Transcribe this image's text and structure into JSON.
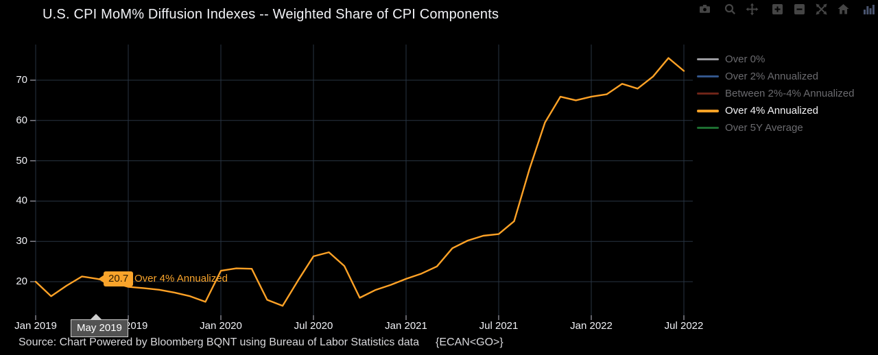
{
  "title": "U.S. CPI MoM% Diffusion Indexes -- Weighted Share of CPI Components",
  "toolbar": {
    "icons": [
      "camera",
      "zoom",
      "pan",
      "zoom-in",
      "zoom-out",
      "autoscale",
      "reset-axes",
      "plotly-logo"
    ]
  },
  "legend": {
    "items": [
      {
        "label": "Over 0%",
        "color": "#9c9ca0",
        "active": false
      },
      {
        "label": "Over 2% Annualized",
        "color": "#33568c",
        "active": false
      },
      {
        "label": "Between 2%-4% Annualized",
        "color": "#6e2418",
        "active": false
      },
      {
        "label": "Over 4% Annualized",
        "color": "#ffa226",
        "active": true
      },
      {
        "label": "Over 5Y Average",
        "color": "#1d6f31",
        "active": false
      }
    ]
  },
  "hover": {
    "value": "20.7",
    "series": "Over 4% Annualized",
    "axis": "May 2019"
  },
  "source": {
    "text": "Source: Chart Powered by Bloomberg BQNT using Bureau of Labor Statistics data",
    "code": "{ECAN<GO>}"
  },
  "colors": {
    "background": "#000000",
    "grid": "#283442",
    "tick": "#8b8b95",
    "accent_orange": "#ffa226"
  },
  "chart_data": {
    "type": "line",
    "title": "U.S. CPI MoM% Diffusion Indexes -- Weighted Share of CPI Components",
    "x": [
      "Jan 2019",
      "Feb 2019",
      "Mar 2019",
      "Apr 2019",
      "May 2019",
      "Jun 2019",
      "Jul 2019",
      "Aug 2019",
      "Sep 2019",
      "Oct 2019",
      "Nov 2019",
      "Dec 2019",
      "Jan 2020",
      "Feb 2020",
      "Mar 2020",
      "Apr 2020",
      "May 2020",
      "Jun 2020",
      "Jul 2020",
      "Aug 2020",
      "Sep 2020",
      "Oct 2020",
      "Nov 2020",
      "Dec 2020",
      "Jan 2021",
      "Feb 2021",
      "Mar 2021",
      "Apr 2021",
      "May 2021",
      "Jun 2021",
      "Jul 2021",
      "Aug 2021",
      "Sep 2021",
      "Oct 2021",
      "Nov 2021",
      "Dec 2021",
      "Jan 2022",
      "Feb 2022",
      "Mar 2022",
      "Apr 2022",
      "May 2022",
      "Jun 2022",
      "Jul 2022"
    ],
    "series": [
      {
        "name": "Over 4% Annualized",
        "color": "#ffa226",
        "visible": true,
        "values": [
          20.0,
          16.4,
          19.0,
          21.3,
          20.7,
          19.8,
          18.7,
          18.4,
          18.0,
          17.3,
          16.4,
          15.0,
          22.7,
          23.3,
          23.2,
          15.5,
          14.0,
          20.3,
          26.3,
          27.3,
          23.9,
          16.0,
          17.9,
          19.2,
          20.7,
          22.0,
          23.8,
          28.3,
          30.2,
          31.4,
          31.8,
          35.0,
          48.0,
          59.5,
          65.9,
          65.0,
          65.9,
          66.5,
          69.1,
          67.9,
          70.9,
          75.5,
          72.3
        ]
      },
      {
        "name": "Over 0%",
        "color": "#9c9ca0",
        "visible": false,
        "values": []
      },
      {
        "name": "Over 2% Annualized",
        "color": "#33568c",
        "visible": false,
        "values": []
      },
      {
        "name": "Between 2%-4% Annualized",
        "color": "#6e2418",
        "visible": false,
        "values": []
      },
      {
        "name": "Over 5Y Average",
        "color": "#1d6f31",
        "visible": false,
        "values": []
      }
    ],
    "xlabel": "",
    "ylabel": "",
    "ylim": [
      11.5,
      79
    ],
    "y_ticks": [
      20,
      30,
      40,
      50,
      60,
      70
    ],
    "x_tick_labels": [
      "Jan 2019",
      "Jul 2019",
      "Jan 2020",
      "Jul 2020",
      "Jan 2021",
      "Jul 2021",
      "Jan 2022",
      "Jul 2022"
    ],
    "grid": true,
    "legend_position": "right",
    "annotation": {
      "x": "May 2019",
      "y": 20.7,
      "series": "Over 4% Annualized",
      "value_label": "20.7"
    }
  }
}
